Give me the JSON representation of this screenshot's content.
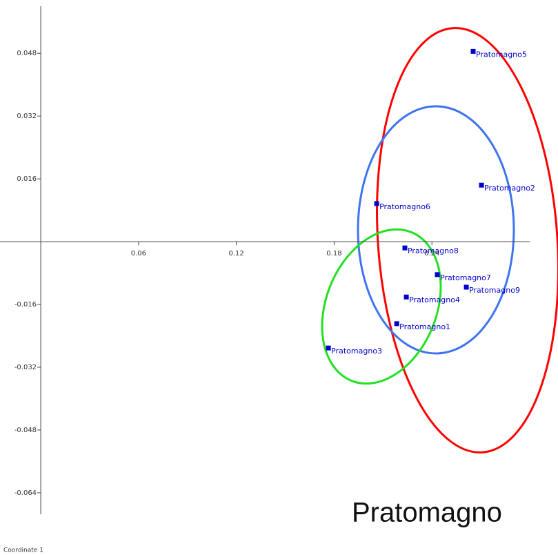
{
  "chart_data": {
    "type": "scatter",
    "xlabel": "Coordinate 1",
    "annotation": "Pratomagno",
    "x": [
      0.2653,
      0.2704,
      0.2061,
      0.2234,
      0.2433,
      0.2611,
      0.2243,
      0.2184,
      0.1765
    ],
    "values": [
      0.0485,
      0.0144,
      0.0097,
      -0.0016,
      -0.0084,
      -0.0116,
      -0.0141,
      -0.0209,
      -0.0271
    ],
    "labels": [
      "Pratomagno5",
      "Pratomagno2",
      "Pratomagno6",
      "Pratomagno8",
      "Pratomagno7",
      "Pratomagno9",
      "Pratomagno4",
      "Pratomagno1",
      "Pratomagno3"
    ],
    "color": "#0000cc",
    "xlim": [
      -0.025,
      0.3
    ],
    "xticks": [
      0.06,
      0.12,
      0.18,
      0.24
    ],
    "ylim": [
      -0.07,
      0.06
    ],
    "yticks": [
      0.048,
      0.032,
      0.016,
      -0.016,
      -0.032,
      -0.048,
      -0.064
    ]
  }
}
